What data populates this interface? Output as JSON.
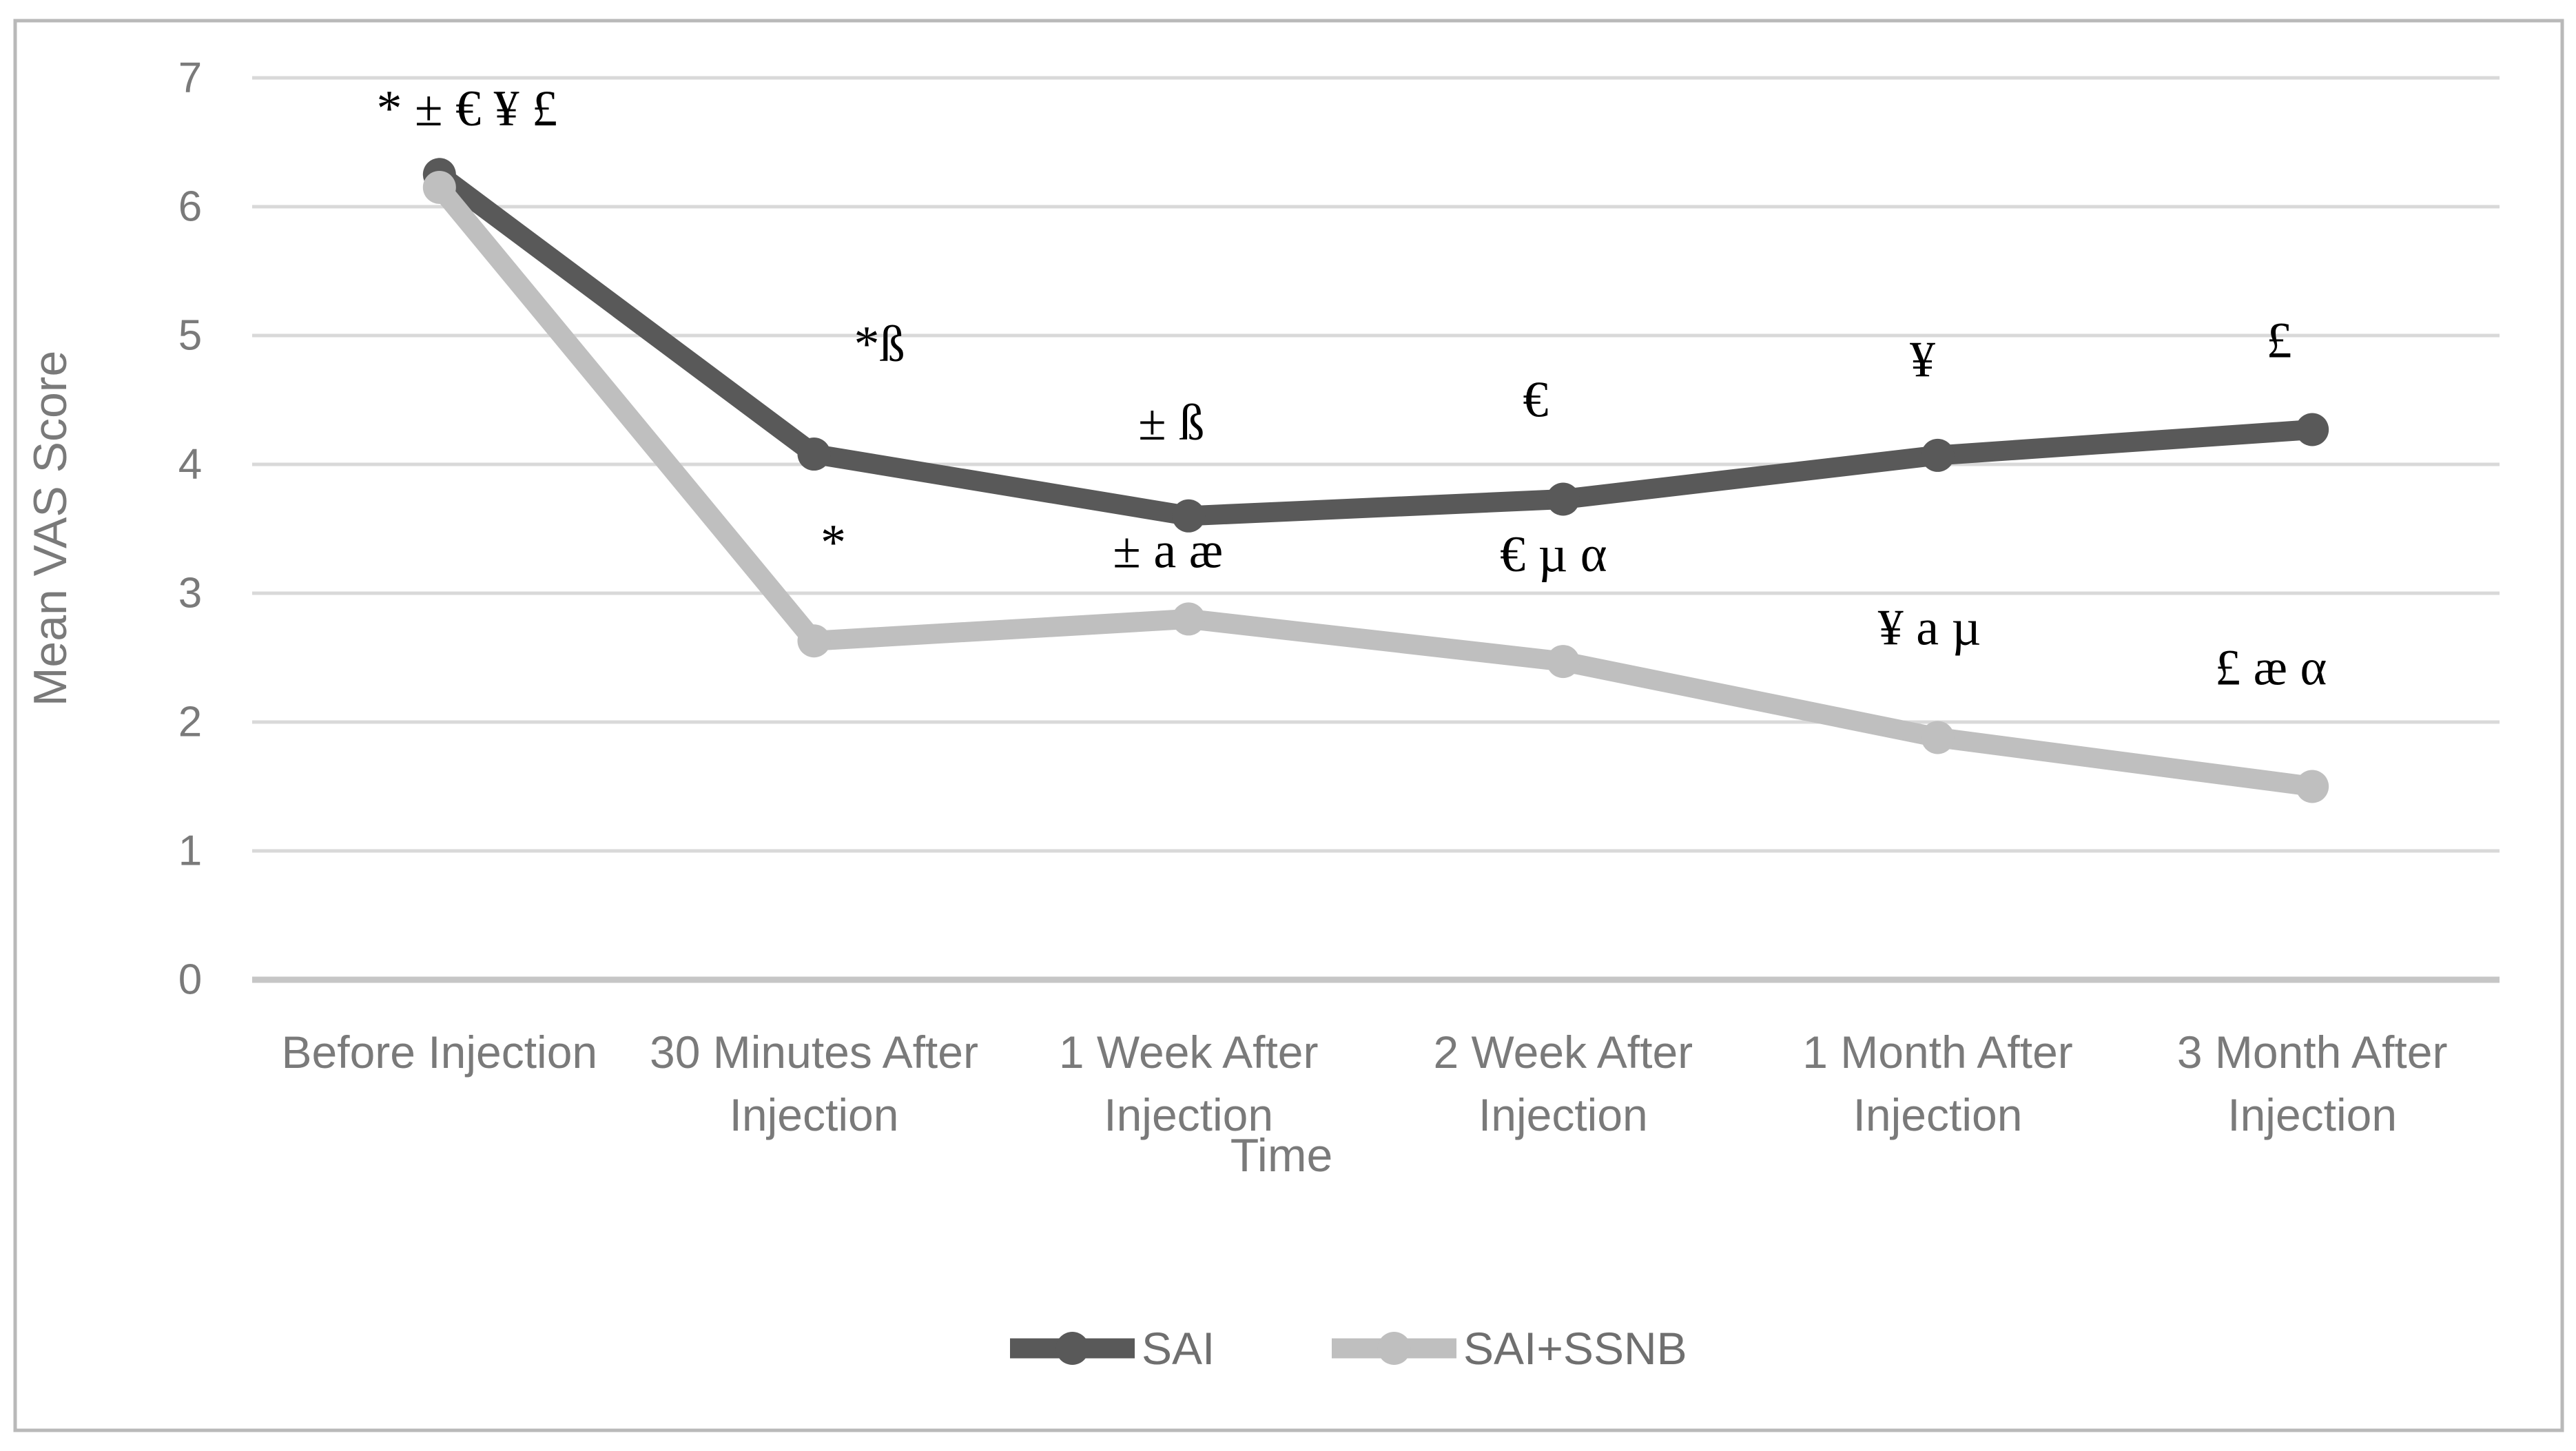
{
  "figure": {
    "background": "#ffffff",
    "border_color": "#b9b9b9",
    "gridline_color": "#d9d9d9",
    "axisline_color": "#c6c6c6",
    "label_color": "#7a7a7a",
    "legend_text_color": "#6f6f6f",
    "annotation_color": "#000000"
  },
  "chart_data": {
    "type": "line",
    "title": "",
    "xlabel": "Time",
    "ylabel": "Mean VAS Score",
    "ylim": [
      0,
      7
    ],
    "yticks": [
      0,
      1,
      2,
      3,
      4,
      5,
      6,
      7
    ],
    "grid": true,
    "legend_position": "bottom",
    "categories": [
      "Before Injection",
      "30 Minutes After Injection",
      "1 Week After Injection",
      "2 Week After Injection",
      "1 Month After Injection",
      "3 Month After Injection"
    ],
    "category_label_lines": [
      [
        "Before Injection"
      ],
      [
        "30 Minutes After",
        "Injection"
      ],
      [
        "1 Week After",
        "Injection"
      ],
      [
        "2 Week After",
        "Injection"
      ],
      [
        "1 Month After",
        "Injection"
      ],
      [
        "3 Month After",
        "Injection"
      ]
    ],
    "series": [
      {
        "name": "SAI",
        "color": "#595959",
        "values": [
          6.25,
          4.08,
          3.6,
          3.73,
          4.07,
          4.27
        ]
      },
      {
        "name": "SAI+SSNB",
        "color": "#bfbfbf",
        "values": [
          6.15,
          2.63,
          2.8,
          2.47,
          1.88,
          1.5
        ]
      }
    ],
    "annotations": [
      {
        "text": "* ± € ¥ £",
        "x_index": 0,
        "dx": 40,
        "y": 6.76
      },
      {
        "text": "*ß",
        "x_index": 1,
        "dx": 95,
        "y": 4.93
      },
      {
        "text": "*",
        "x_index": 1,
        "dx": 28,
        "y": 3.39
      },
      {
        "text": "± ß",
        "x_index": 2,
        "dx": -25,
        "y": 4.32
      },
      {
        "text": "± a æ",
        "x_index": 2,
        "dx": -30,
        "y": 3.33
      },
      {
        "text": "€",
        "x_index": 3,
        "dx": -40,
        "y": 4.5
      },
      {
        "text": "€ µ α",
        "x_index": 3,
        "dx": -14,
        "y": 3.3
      },
      {
        "text": "¥",
        "x_index": 4,
        "dx": -22,
        "y": 4.81
      },
      {
        "text": "¥ a µ",
        "x_index": 4,
        "dx": -12,
        "y": 2.73
      },
      {
        "text": "£",
        "x_index": 5,
        "dx": -48,
        "y": 4.96
      },
      {
        "text": "£ æ α",
        "x_index": 5,
        "dx": -60,
        "y": 2.42
      }
    ]
  },
  "legend": {
    "items": [
      {
        "label": "SAI"
      },
      {
        "label": "SAI+SSNB"
      }
    ]
  }
}
